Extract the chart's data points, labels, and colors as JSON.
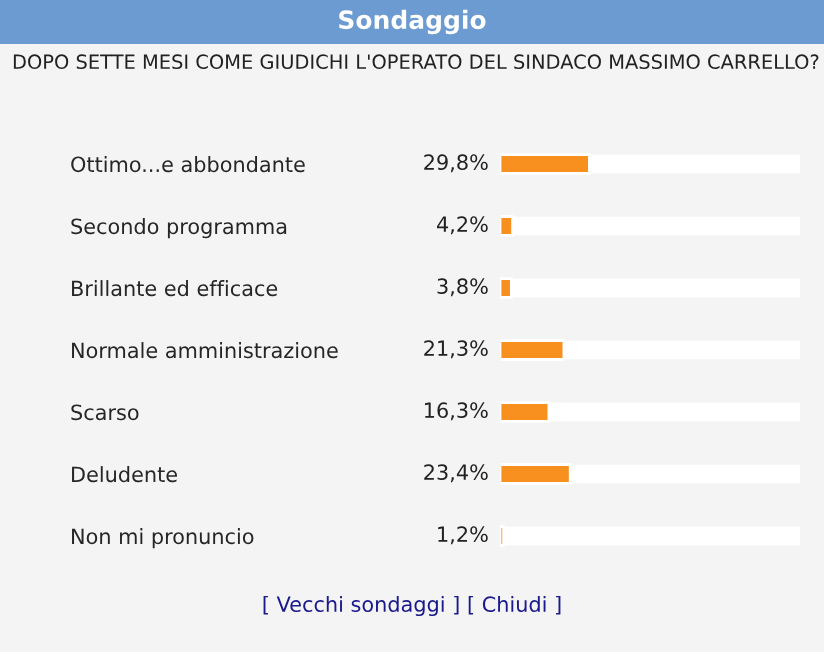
{
  "chart_data": {
    "type": "bar",
    "orientation": "horizontal",
    "title": "Sondaggio",
    "subtitle": "DOPO SETTE MESI COME GIUDICHI L'OPERATO DEL SINDACO MASSIMO CARRELLO?",
    "categories": [
      "Ottimo...e abbondante",
      "Secondo programma",
      "Brillante ed efficace",
      "Normale amministrazione",
      "Scarso",
      "Deludente",
      "Non mi pronuncio"
    ],
    "values": [
      29.8,
      4.2,
      3.8,
      21.3,
      16.3,
      23.4,
      1.2
    ],
    "value_labels": [
      "29,8%",
      "4,2%",
      "3,8%",
      "21,3%",
      "16,3%",
      "23,4%",
      "1,2%"
    ],
    "color": "#f7901e",
    "xlim": [
      0,
      100
    ],
    "tick_labels": "y",
    "grid": false,
    "legend": false,
    "annotations": [
      "[ Vecchi sondaggi ] [ Chiudi ]"
    ]
  }
}
